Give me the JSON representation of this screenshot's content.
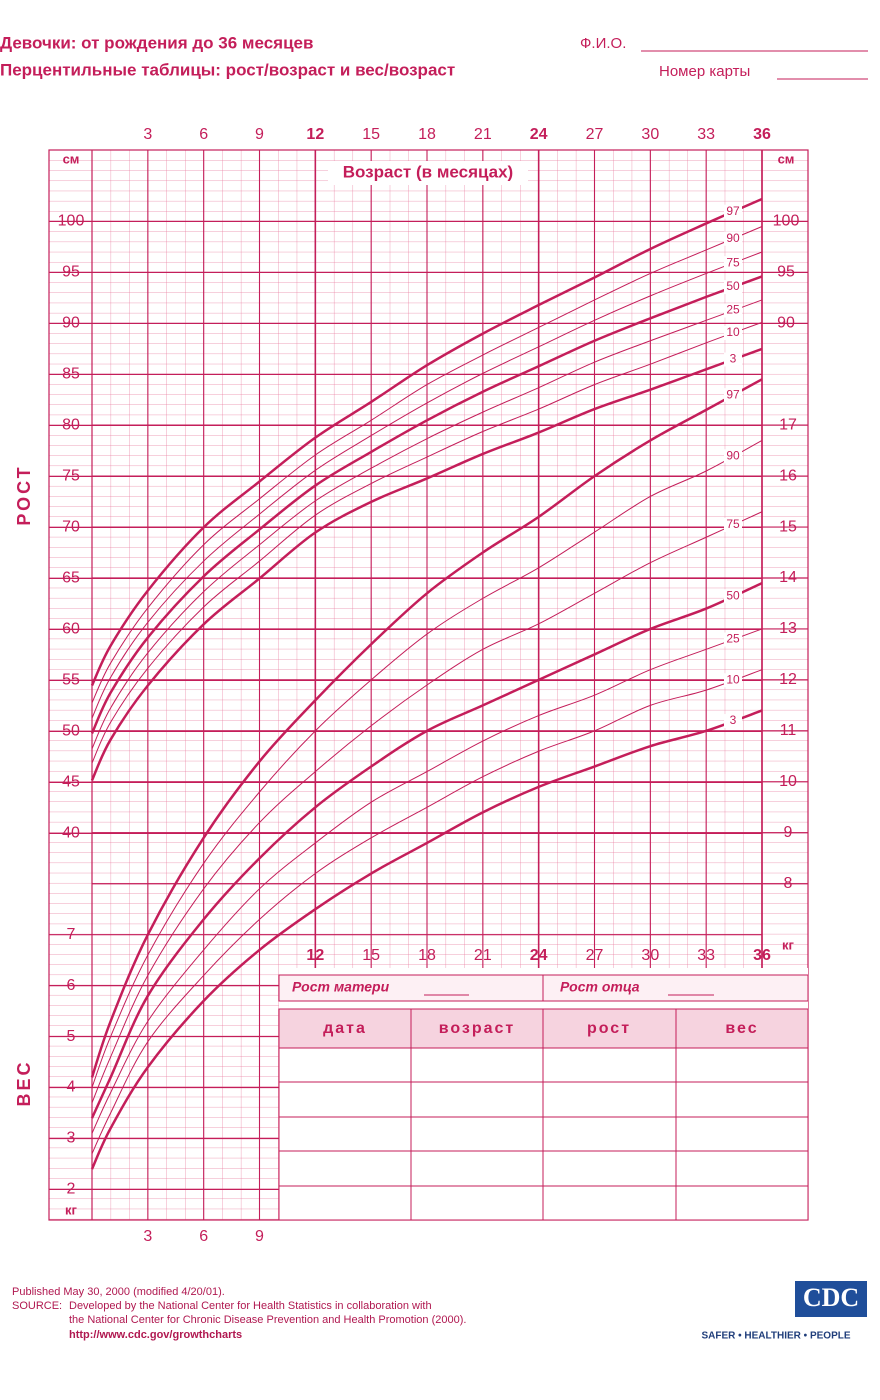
{
  "header": {
    "title": "Девочки: от рождения до 36 месяцев",
    "subtitle": "Перцентильные таблицы: рост/возраст и вес/возраст",
    "name_label": "Ф.И.О.",
    "card_label": "Номер карты"
  },
  "chart_data": [
    {
      "type": "line",
      "x_label": "Возраст (в месяцах)",
      "y_label": "РОСТ",
      "y_unit": "см",
      "x": [
        0,
        1,
        3,
        6,
        9,
        12,
        15,
        18,
        21,
        24,
        27,
        30,
        33,
        36
      ],
      "xlim": [
        0,
        36
      ],
      "xticks": [
        3,
        6,
        9,
        12,
        15,
        18,
        21,
        24,
        27,
        30,
        33,
        36
      ],
      "ylim": [
        37,
        107
      ],
      "yticks": [
        40,
        45,
        50,
        55,
        60,
        65,
        70,
        75,
        80,
        85,
        90,
        95,
        100
      ],
      "grid": true,
      "series": [
        {
          "name": "97",
          "color": "#c41e5a",
          "linewidth": 2.5,
          "values": [
            54.5,
            58.4,
            63.8,
            70.0,
            74.5,
            78.8,
            82.3,
            85.9,
            89.0,
            91.8,
            94.5,
            97.3,
            99.8,
            102.2
          ]
        },
        {
          "name": "90",
          "color": "#c41e5a",
          "linewidth": 1,
          "values": [
            52.8,
            56.7,
            62.1,
            68.3,
            72.8,
            77.1,
            80.5,
            84.0,
            86.9,
            89.6,
            92.3,
            94.9,
            97.2,
            99.5
          ]
        },
        {
          "name": "75",
          "color": "#c41e5a",
          "linewidth": 1,
          "values": [
            51.3,
            55.3,
            60.7,
            66.7,
            71.3,
            75.6,
            79.0,
            82.2,
            85.1,
            87.7,
            90.3,
            92.7,
            94.9,
            97.0
          ]
        },
        {
          "name": "50",
          "color": "#c41e5a",
          "linewidth": 2.5,
          "values": [
            49.8,
            53.8,
            59.2,
            65.2,
            69.8,
            74.1,
            77.4,
            80.5,
            83.3,
            85.8,
            88.3,
            90.5,
            92.6,
            94.6
          ]
        },
        {
          "name": "25",
          "color": "#c41e5a",
          "linewidth": 1,
          "values": [
            48.3,
            52.3,
            57.7,
            63.7,
            68.3,
            72.6,
            75.8,
            78.7,
            81.3,
            83.7,
            86.2,
            88.3,
            90.3,
            92.3
          ]
        },
        {
          "name": "10",
          "color": "#c41e5a",
          "linewidth": 1,
          "values": [
            46.9,
            50.9,
            56.2,
            62.2,
            66.7,
            71.2,
            74.3,
            76.9,
            79.4,
            81.6,
            84.0,
            86.0,
            88.1,
            90.1
          ]
        },
        {
          "name": "3",
          "color": "#c41e5a",
          "linewidth": 2.5,
          "values": [
            45.2,
            49.2,
            54.5,
            60.5,
            65.0,
            69.5,
            72.5,
            74.8,
            77.2,
            79.3,
            81.6,
            83.5,
            85.5,
            87.5
          ]
        }
      ]
    },
    {
      "type": "line",
      "y_label": "ВЕС",
      "y_unit": "кг",
      "x": [
        0,
        1,
        3,
        6,
        9,
        12,
        15,
        18,
        21,
        24,
        27,
        30,
        33,
        36
      ],
      "xlim": [
        0,
        36
      ],
      "xticks": [
        3,
        6,
        9,
        12,
        15,
        18,
        21,
        24,
        27,
        30,
        33,
        36
      ],
      "ylim": [
        1.4,
        22.4
      ],
      "yticks": [
        2,
        3,
        4,
        5,
        6,
        7,
        8,
        9,
        10,
        11,
        12,
        13,
        14,
        15,
        16,
        17
      ],
      "grid": true,
      "series": [
        {
          "name": "97",
          "color": "#c41e5a",
          "linewidth": 2.5,
          "values": [
            4.2,
            5.3,
            7.0,
            8.9,
            10.4,
            11.6,
            12.7,
            13.7,
            14.5,
            15.2,
            16.0,
            16.7,
            17.3,
            17.9
          ]
        },
        {
          "name": "90",
          "color": "#c41e5a",
          "linewidth": 1,
          "values": [
            4.0,
            5.0,
            6.6,
            8.4,
            9.8,
            11.0,
            12.0,
            12.9,
            13.6,
            14.2,
            14.9,
            15.6,
            16.1,
            16.7
          ]
        },
        {
          "name": "75",
          "color": "#c41e5a",
          "linewidth": 1,
          "values": [
            3.7,
            4.6,
            6.2,
            7.9,
            9.2,
            10.2,
            11.1,
            11.9,
            12.6,
            13.1,
            13.7,
            14.3,
            14.8,
            15.3
          ]
        },
        {
          "name": "50",
          "color": "#c41e5a",
          "linewidth": 2.5,
          "values": [
            3.4,
            4.2,
            5.8,
            7.3,
            8.5,
            9.5,
            10.3,
            11.0,
            11.5,
            12.0,
            12.5,
            13.0,
            13.4,
            13.9
          ]
        },
        {
          "name": "25",
          "color": "#c41e5a",
          "linewidth": 1,
          "values": [
            3.1,
            3.9,
            5.3,
            6.7,
            7.9,
            8.8,
            9.6,
            10.2,
            10.8,
            11.3,
            11.7,
            12.2,
            12.6,
            13.0
          ]
        },
        {
          "name": "10",
          "color": "#c41e5a",
          "linewidth": 1,
          "values": [
            2.7,
            3.5,
            4.9,
            6.2,
            7.3,
            8.2,
            8.9,
            9.5,
            10.1,
            10.6,
            11.0,
            11.5,
            11.8,
            12.2
          ]
        },
        {
          "name": "3",
          "color": "#c41e5a",
          "linewidth": 2.5,
          "values": [
            2.4,
            3.2,
            4.4,
            5.7,
            6.7,
            7.5,
            8.2,
            8.8,
            9.4,
            9.9,
            10.3,
            10.7,
            11.0,
            11.4
          ]
        }
      ]
    }
  ],
  "table": {
    "mother": "Рост матери",
    "father": "Рост отца",
    "columns": [
      "дата",
      "возраст",
      "рост",
      "вес"
    ]
  },
  "footer": {
    "published": "Published May 30, 2000 (modified 4/20/01).",
    "source_label": "SOURCE:",
    "source1": "Developed by the National Center for Health Statistics in collaboration with",
    "source2": "the National Center for Chronic Disease Prevention and Health Promotion (2000).",
    "url": "http://www.cdc.gov/growthcharts",
    "logo": "CDC",
    "slogan": "SAFER • HEALTHIER • PEOPLE"
  }
}
